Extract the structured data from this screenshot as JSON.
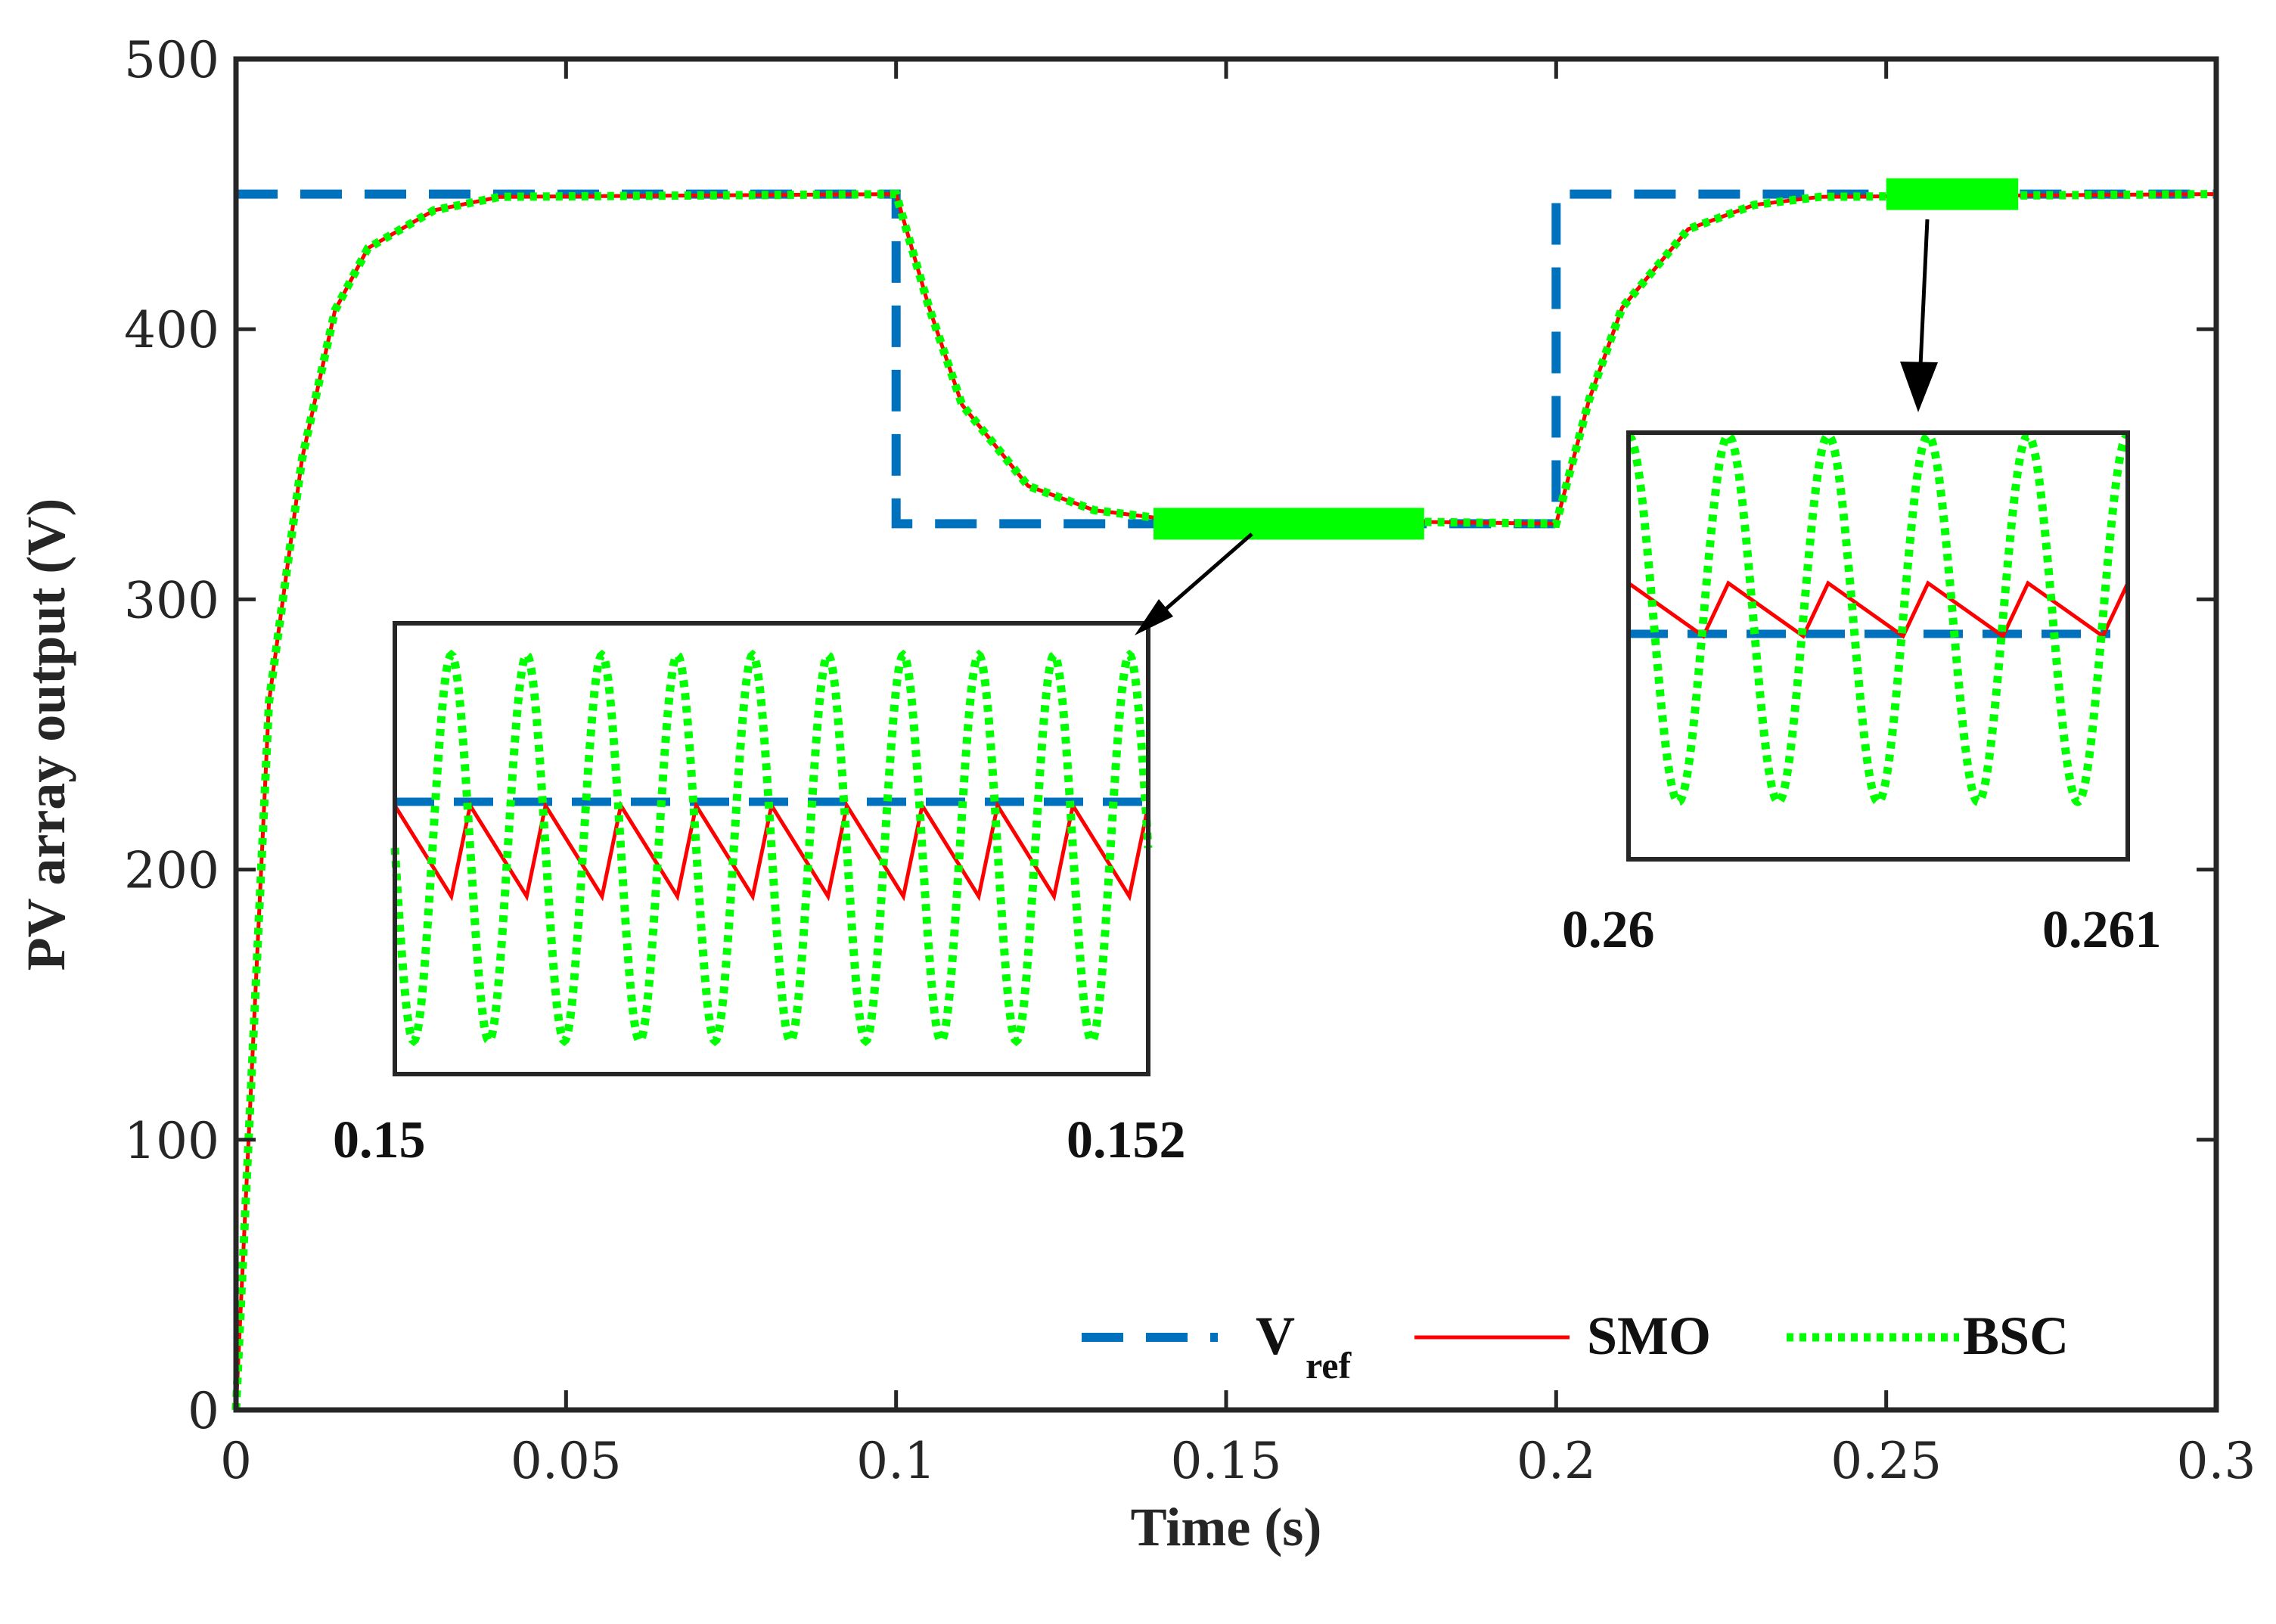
{
  "chart_data": {
    "type": "line",
    "title": "",
    "xlabel": "Time (s)",
    "ylabel": "PV array output (V)",
    "xlim": [
      0,
      0.3
    ],
    "ylim": [
      0,
      500
    ],
    "grid": false,
    "x_ticks": [
      0,
      0.05,
      0.1,
      0.15,
      0.2,
      0.25,
      0.3
    ],
    "x_tick_labels": [
      "0",
      "0.05",
      "0.1",
      "0.15",
      "0.2",
      "0.25",
      "0.3"
    ],
    "y_ticks": [
      0,
      100,
      200,
      300,
      400,
      500
    ],
    "y_tick_labels": [
      "0",
      "100",
      "200",
      "300",
      "400",
      "500"
    ],
    "legend_position": "bottom-right",
    "series": [
      {
        "name": "Vref",
        "legend_main": "V",
        "legend_sub": "ref",
        "color": "#0072bd",
        "style": "dashed",
        "x": [
          0,
          0.1,
          0.1,
          0.2,
          0.2,
          0.3
        ],
        "y": [
          450,
          450,
          328,
          328,
          450,
          450
        ]
      },
      {
        "name": "SMO",
        "legend_main": "SMO",
        "color": "#ff0000",
        "style": "solid",
        "x": [
          0,
          0.005,
          0.01,
          0.015,
          0.02,
          0.03,
          0.04,
          0.1,
          0.105,
          0.11,
          0.12,
          0.13,
          0.14,
          0.2,
          0.205,
          0.21,
          0.22,
          0.23,
          0.24,
          0.3
        ],
        "y": [
          0,
          262,
          352,
          407,
          430,
          444,
          449,
          450,
          408,
          372,
          342,
          333,
          330,
          328,
          374,
          408,
          437,
          446,
          449,
          450
        ]
      },
      {
        "name": "BSC",
        "legend_main": "BSC",
        "color": "#00ff00",
        "style": "dotted",
        "x": [
          0,
          0.005,
          0.01,
          0.015,
          0.02,
          0.03,
          0.04,
          0.1,
          0.105,
          0.11,
          0.12,
          0.13,
          0.14,
          0.2,
          0.205,
          0.21,
          0.22,
          0.23,
          0.24,
          0.3
        ],
        "y": [
          0,
          262,
          352,
          407,
          430,
          444,
          449,
          450,
          408,
          372,
          342,
          333,
          330,
          328,
          374,
          408,
          437,
          446,
          449,
          450
        ]
      }
    ],
    "insets": [
      {
        "name": "inset-left",
        "x_start_label": "0.15",
        "x_end_label": "0.152",
        "x_range": [
          0.15,
          0.152
        ],
        "zoom_marker_x": [
          0.139,
          0.18
        ],
        "zoom_marker_y": 328,
        "smo_cycles": 10,
        "bsc_cycles": 10,
        "bsc_phase": 0.25
      },
      {
        "name": "inset-right",
        "x_start_label": "0.26",
        "x_end_label": "0.261",
        "x_range": [
          0.26,
          0.261
        ],
        "zoom_marker_x": [
          0.25,
          0.27
        ],
        "zoom_marker_y": 450,
        "smo_cycles": 5,
        "bsc_cycles": 5,
        "bsc_phase": 0.0
      }
    ]
  }
}
